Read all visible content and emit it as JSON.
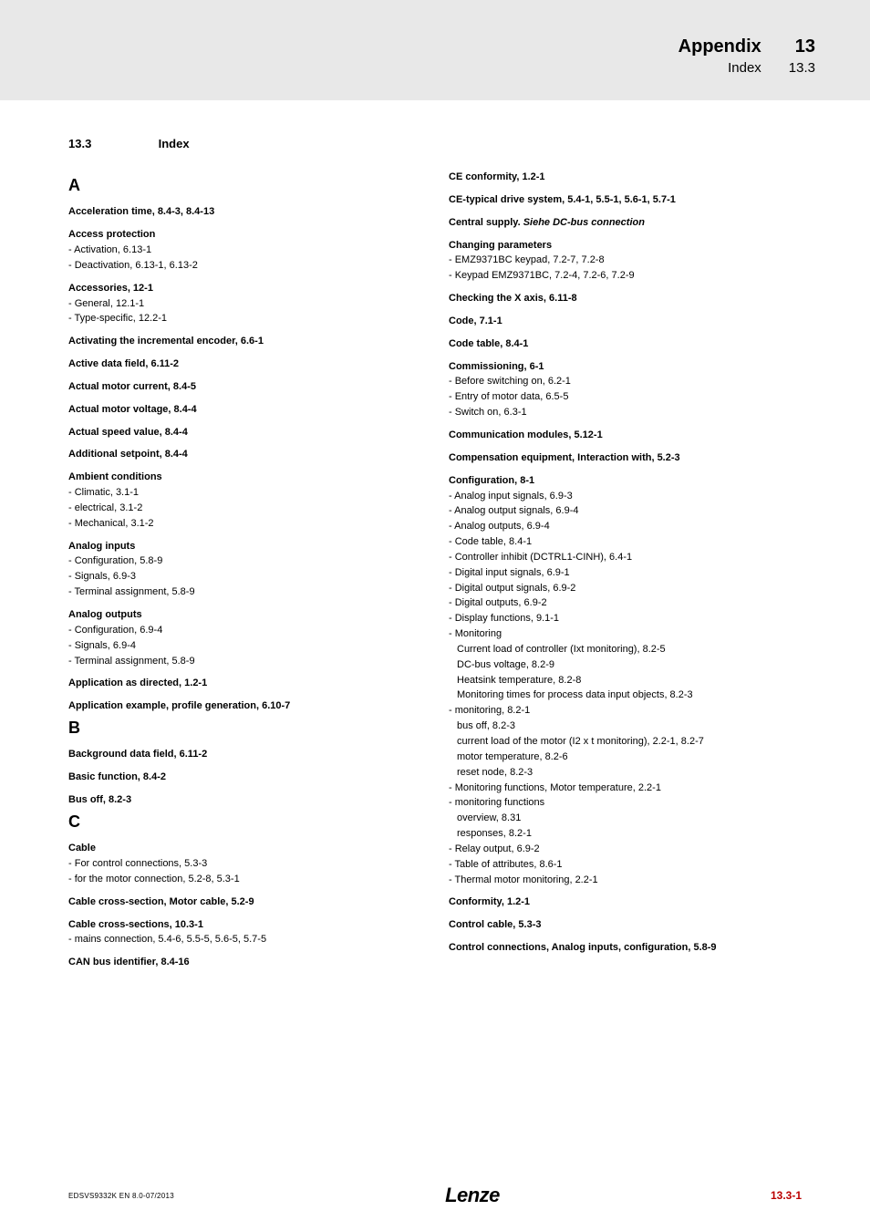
{
  "header": {
    "title_main": "Appendix",
    "title_sub": "Index",
    "num_main": "13",
    "num_sub": "13.3"
  },
  "section": {
    "num": "13.3",
    "title": "Index"
  },
  "col_left": [
    {
      "t": "letter",
      "v": "A"
    },
    {
      "t": "bold",
      "v": "Acceleration time,  8.4-3,  8.4-13"
    },
    {
      "t": "bold",
      "v": "Access protection"
    },
    {
      "t": "sub",
      "v": "- Activation,  6.13-1"
    },
    {
      "t": "sub",
      "v": "- Deactivation,  6.13-1,  6.13-2"
    },
    {
      "t": "bold",
      "v": "Accessories,  12-1"
    },
    {
      "t": "sub",
      "v": "- General,  12.1-1"
    },
    {
      "t": "sub",
      "v": "- Type-specific,  12.2-1"
    },
    {
      "t": "bold",
      "v": "Activating the incremental encoder,  6.6-1"
    },
    {
      "t": "bold",
      "v": "Active data field,  6.11-2"
    },
    {
      "t": "bold",
      "v": "Actual motor current,  8.4-5"
    },
    {
      "t": "bold",
      "v": "Actual motor voltage,  8.4-4"
    },
    {
      "t": "bold",
      "v": "Actual speed value,  8.4-4"
    },
    {
      "t": "bold",
      "v": "Additional setpoint,  8.4-4"
    },
    {
      "t": "bold",
      "v": "Ambient conditions"
    },
    {
      "t": "sub",
      "v": "- Climatic,  3.1-1"
    },
    {
      "t": "sub",
      "v": "- electrical,  3.1-2"
    },
    {
      "t": "sub",
      "v": "- Mechanical,  3.1-2"
    },
    {
      "t": "bold",
      "v": "Analog inputs"
    },
    {
      "t": "sub",
      "v": "- Configuration,  5.8-9"
    },
    {
      "t": "sub",
      "v": "- Signals,  6.9-3"
    },
    {
      "t": "sub",
      "v": "- Terminal assignment,  5.8-9"
    },
    {
      "t": "bold",
      "v": "Analog outputs"
    },
    {
      "t": "sub",
      "v": "- Configuration,  6.9-4"
    },
    {
      "t": "sub",
      "v": "- Signals,  6.9-4"
    },
    {
      "t": "sub",
      "v": "- Terminal assignment,  5.8-9"
    },
    {
      "t": "bold",
      "v": "Application as directed,  1.2-1"
    },
    {
      "t": "bold",
      "v": "Application example, profile generation,  6.10-7"
    },
    {
      "t": "letter",
      "v": "B"
    },
    {
      "t": "bold",
      "v": "Background data field,  6.11-2"
    },
    {
      "t": "bold",
      "v": "Basic function,  8.4-2"
    },
    {
      "t": "bold",
      "v": "Bus off,  8.2-3"
    },
    {
      "t": "letter",
      "v": "C"
    },
    {
      "t": "bold",
      "v": "Cable"
    },
    {
      "t": "sub",
      "v": "- For control connections,  5.3-3"
    },
    {
      "t": "sub",
      "v": "- for the motor connection,  5.2-8,  5.3-1"
    },
    {
      "t": "bold",
      "v": "Cable cross-section, Motor cable,  5.2-9"
    },
    {
      "t": "bold",
      "v": "Cable cross-sections,  10.3-1"
    },
    {
      "t": "sub",
      "v": "- mains connection,  5.4-6,  5.5-5,  5.6-5,  5.7-5"
    },
    {
      "t": "bold",
      "v": "CAN bus identifier,  8.4-16"
    }
  ],
  "col_right": [
    {
      "t": "boldfirst",
      "v": "CE conformity,  1.2-1"
    },
    {
      "t": "bold",
      "v": "CE-typical drive system,  5.4-1,  5.5-1,  5.6-1,  5.7-1"
    },
    {
      "t": "bolditalic",
      "prefix": "Central supply. ",
      "ital": "Siehe DC-bus connection"
    },
    {
      "t": "bold",
      "v": "Changing parameters"
    },
    {
      "t": "sub",
      "v": "- EMZ9371BC keypad,  7.2-7,  7.2-8"
    },
    {
      "t": "sub",
      "v": "- Keypad EMZ9371BC,  7.2-4,  7.2-6,  7.2-9"
    },
    {
      "t": "bold",
      "v": "Checking the X axis,  6.11-8"
    },
    {
      "t": "bold",
      "v": "Code,  7.1-1"
    },
    {
      "t": "bold",
      "v": "Code table,  8.4-1"
    },
    {
      "t": "bold",
      "v": "Commissioning,  6-1"
    },
    {
      "t": "sub",
      "v": "- Before switching on,  6.2-1"
    },
    {
      "t": "sub",
      "v": "- Entry of motor data,  6.5-5"
    },
    {
      "t": "sub",
      "v": "- Switch on,  6.3-1"
    },
    {
      "t": "bold",
      "v": "Communication modules,  5.12-1"
    },
    {
      "t": "bold",
      "v": "Compensation equipment, Interaction with,  5.2-3"
    },
    {
      "t": "bold",
      "v": "Configuration,  8-1"
    },
    {
      "t": "sub",
      "v": "- Analog input signals,  6.9-3"
    },
    {
      "t": "sub",
      "v": "- Analog output signals,  6.9-4"
    },
    {
      "t": "sub",
      "v": "- Analog outputs,  6.9-4"
    },
    {
      "t": "sub",
      "v": "- Code table,  8.4-1"
    },
    {
      "t": "sub",
      "v": "- Controller inhibit (DCTRL1-CINH),  6.4-1"
    },
    {
      "t": "sub",
      "v": "- Digital input signals,  6.9-1"
    },
    {
      "t": "sub",
      "v": "- Digital output signals,  6.9-2"
    },
    {
      "t": "sub",
      "v": "- Digital outputs,  6.9-2"
    },
    {
      "t": "sub",
      "v": "- Display functions,  9.1-1"
    },
    {
      "t": "sub",
      "v": "- Monitoring"
    },
    {
      "t": "indent",
      "v": "Current load of controller (Ixt monitoring),  8.2-5"
    },
    {
      "t": "indent",
      "v": "DC-bus voltage,  8.2-9"
    },
    {
      "t": "indent",
      "v": "Heatsink temperature,  8.2-8"
    },
    {
      "t": "indent",
      "v": "Monitoring times for process data input objects,  8.2-3"
    },
    {
      "t": "sub",
      "v": "- monitoring,  8.2-1"
    },
    {
      "t": "indent",
      "v": "bus off,  8.2-3"
    },
    {
      "t": "indent",
      "v": "current load of the motor (I2 x t monitoring),  2.2-1,  8.2-7"
    },
    {
      "t": "indent",
      "v": "motor temperature,  8.2-6"
    },
    {
      "t": "indent",
      "v": "reset node,  8.2-3"
    },
    {
      "t": "sub",
      "v": "- Monitoring functions, Motor temperature,  2.2-1"
    },
    {
      "t": "sub",
      "v": "- monitoring functions"
    },
    {
      "t": "indent",
      "v": "overview,  8.31"
    },
    {
      "t": "indent",
      "v": "responses,  8.2-1"
    },
    {
      "t": "sub",
      "v": "- Relay output,  6.9-2"
    },
    {
      "t": "sub",
      "v": "- Table of attributes,  8.6-1"
    },
    {
      "t": "sub",
      "v": "- Thermal motor monitoring,  2.2-1"
    },
    {
      "t": "bold",
      "v": "Conformity,  1.2-1"
    },
    {
      "t": "bold",
      "v": "Control cable,  5.3-3"
    },
    {
      "t": "bold",
      "v": "Control connections, Analog inputs, configuration,  5.8-9"
    }
  ],
  "footer": {
    "left": "EDSVS9332K  EN  8.0-07/2013",
    "logo": "Lenze",
    "right": "13.3-1"
  },
  "colors": {
    "header_bg": "#e8e8e8",
    "page_num": "#b00000",
    "text": "#000000"
  }
}
